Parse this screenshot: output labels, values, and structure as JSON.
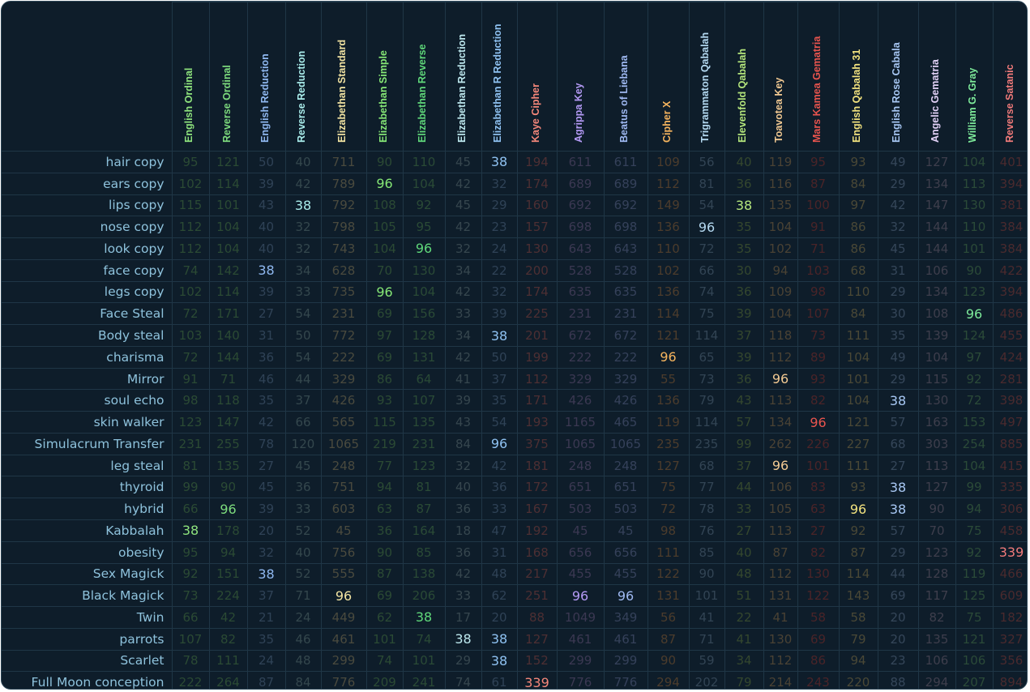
{
  "ciphers": [
    {
      "name": "English Ordinal",
      "color": "#8ee37d",
      "dim": "#2b4a34"
    },
    {
      "name": "Reverse Ordinal",
      "color": "#7ddb7d",
      "dim": "#2b4a34"
    },
    {
      "name": "English Reduction",
      "color": "#8fb8f0",
      "dim": "#2f4256"
    },
    {
      "name": "Reverse Reduction",
      "color": "#a8ecea",
      "dim": "#34474d"
    },
    {
      "name": "Elizabethan Standard",
      "color": "#f2e4a2",
      "dim": "#4a4a3e"
    },
    {
      "name": "Elizabethan Simple",
      "color": "#86e876",
      "dim": "#2b4a34"
    },
    {
      "name": "Elizabethan Reverse",
      "color": "#5fd87a",
      "dim": "#2a4a36"
    },
    {
      "name": "Elizabethan Reduction",
      "color": "#bde8ee",
      "dim": "#36464e"
    },
    {
      "name": "Elizabethan R Reduction",
      "color": "#8fc2f2",
      "dim": "#2f4256"
    },
    {
      "name": "Kaye Cipher",
      "color": "#f5877a",
      "dim": "#4d2f33"
    },
    {
      "name": "Agrippa Key",
      "color": "#b49af5",
      "dim": "#3b3852"
    },
    {
      "name": "Beatus of Liebana",
      "color": "#9fb9f2",
      "dim": "#35415a"
    },
    {
      "name": "Cipher X",
      "color": "#f5b45e",
      "dim": "#4c3c2c"
    },
    {
      "name": "Trigrammaton Qabalah",
      "color": "#b3d8f0",
      "dim": "#324454"
    },
    {
      "name": "Elevenfold Qabalah",
      "color": "#b4e67c",
      "dim": "#34472e"
    },
    {
      "name": "Toavotea Key",
      "color": "#f2c992",
      "dim": "#4a4234"
    },
    {
      "name": "Mars Kamea Gematria",
      "color": "#e8544e",
      "dim": "#4a2428"
    },
    {
      "name": "English Qabalah 31",
      "color": "#f2e27e",
      "dim": "#4a4836"
    },
    {
      "name": "English Rose Cabala",
      "color": "#a8c8f4",
      "dim": "#354659"
    },
    {
      "name": "Angelic Gematria",
      "color": "#e0d0f5",
      "dim": "#3e3e4c"
    },
    {
      "name": "William G. Gray",
      "color": "#7dea9a",
      "dim": "#2b4a38"
    },
    {
      "name": "Reverse Satanic",
      "color": "#f07a7a",
      "dim": "#4a2a2e"
    }
  ],
  "rows": [
    {
      "phrase": "hair copy",
      "values": [
        "95",
        "121",
        "50",
        "40",
        "711",
        "90",
        "110",
        "45",
        "38",
        "194",
        "611",
        "611",
        "109",
        "56",
        "40",
        "119",
        "95",
        "93",
        "49",
        "127",
        "104",
        "401"
      ],
      "hl": [
        8
      ]
    },
    {
      "phrase": "ears copy",
      "values": [
        "102",
        "114",
        "39",
        "42",
        "789",
        "96",
        "104",
        "42",
        "32",
        "174",
        "689",
        "689",
        "112",
        "81",
        "36",
        "116",
        "87",
        "84",
        "29",
        "134",
        "113",
        "394"
      ],
      "hl": [
        5
      ]
    },
    {
      "phrase": "lips copy",
      "values": [
        "115",
        "101",
        "43",
        "38",
        "792",
        "108",
        "92",
        "45",
        "29",
        "160",
        "692",
        "692",
        "149",
        "54",
        "38",
        "135",
        "100",
        "97",
        "42",
        "147",
        "130",
        "381"
      ],
      "hl": [
        3,
        14
      ]
    },
    {
      "phrase": "nose copy",
      "values": [
        "112",
        "104",
        "40",
        "32",
        "798",
        "105",
        "95",
        "42",
        "23",
        "157",
        "698",
        "698",
        "136",
        "96",
        "35",
        "104",
        "91",
        "86",
        "32",
        "144",
        "110",
        "384"
      ],
      "hl": [
        13
      ]
    },
    {
      "phrase": "look copy",
      "values": [
        "112",
        "104",
        "40",
        "32",
        "743",
        "104",
        "96",
        "32",
        "24",
        "130",
        "643",
        "643",
        "110",
        "72",
        "35",
        "102",
        "71",
        "86",
        "45",
        "144",
        "101",
        "384"
      ],
      "hl": [
        6
      ]
    },
    {
      "phrase": "face copy",
      "values": [
        "74",
        "142",
        "38",
        "34",
        "628",
        "70",
        "130",
        "34",
        "22",
        "200",
        "528",
        "528",
        "102",
        "66",
        "30",
        "94",
        "103",
        "68",
        "31",
        "106",
        "90",
        "422"
      ],
      "hl": [
        2
      ]
    },
    {
      "phrase": "legs copy",
      "values": [
        "102",
        "114",
        "39",
        "33",
        "735",
        "96",
        "104",
        "42",
        "32",
        "174",
        "635",
        "635",
        "136",
        "74",
        "36",
        "109",
        "98",
        "110",
        "29",
        "134",
        "123",
        "394"
      ],
      "hl": [
        5
      ]
    },
    {
      "phrase": "Face Steal",
      "values": [
        "72",
        "171",
        "27",
        "54",
        "231",
        "69",
        "156",
        "33",
        "39",
        "225",
        "231",
        "231",
        "114",
        "75",
        "39",
        "104",
        "107",
        "84",
        "30",
        "108",
        "96",
        "486"
      ],
      "hl": [
        20
      ]
    },
    {
      "phrase": "Body steal",
      "values": [
        "103",
        "140",
        "31",
        "50",
        "772",
        "97",
        "128",
        "34",
        "38",
        "201",
        "672",
        "672",
        "121",
        "114",
        "37",
        "118",
        "73",
        "111",
        "35",
        "139",
        "124",
        "455"
      ],
      "hl": [
        8
      ]
    },
    {
      "phrase": "charisma",
      "values": [
        "72",
        "144",
        "36",
        "54",
        "222",
        "69",
        "131",
        "42",
        "50",
        "199",
        "222",
        "222",
        "96",
        "65",
        "39",
        "112",
        "89",
        "104",
        "49",
        "104",
        "97",
        "424"
      ],
      "hl": [
        12
      ]
    },
    {
      "phrase": "Mirror",
      "values": [
        "91",
        "71",
        "46",
        "44",
        "329",
        "86",
        "64",
        "41",
        "37",
        "112",
        "329",
        "329",
        "55",
        "73",
        "36",
        "96",
        "93",
        "101",
        "29",
        "115",
        "92",
        "281"
      ],
      "hl": [
        15
      ]
    },
    {
      "phrase": "soul echo",
      "values": [
        "98",
        "118",
        "35",
        "37",
        "426",
        "93",
        "107",
        "39",
        "35",
        "171",
        "426",
        "426",
        "136",
        "79",
        "43",
        "113",
        "82",
        "104",
        "38",
        "130",
        "72",
        "398"
      ],
      "hl": [
        18
      ]
    },
    {
      "phrase": "skin walker",
      "values": [
        "123",
        "147",
        "42",
        "66",
        "565",
        "115",
        "135",
        "43",
        "54",
        "193",
        "1165",
        "465",
        "119",
        "114",
        "57",
        "134",
        "96",
        "121",
        "57",
        "163",
        "153",
        "497"
      ],
      "hl": [
        16
      ]
    },
    {
      "phrase": "Simulacrum Transfer",
      "values": [
        "231",
        "255",
        "78",
        "120",
        "1065",
        "219",
        "231",
        "84",
        "96",
        "375",
        "1065",
        "1065",
        "235",
        "235",
        "99",
        "262",
        "226",
        "227",
        "68",
        "303",
        "254",
        "885"
      ],
      "hl": [
        8
      ]
    },
    {
      "phrase": "leg steal",
      "values": [
        "81",
        "135",
        "27",
        "45",
        "248",
        "77",
        "123",
        "32",
        "42",
        "181",
        "248",
        "248",
        "127",
        "68",
        "37",
        "96",
        "101",
        "111",
        "27",
        "113",
        "104",
        "415"
      ],
      "hl": [
        15
      ]
    },
    {
      "phrase": "thyroid",
      "values": [
        "99",
        "90",
        "45",
        "36",
        "751",
        "94",
        "81",
        "40",
        "36",
        "172",
        "651",
        "651",
        "75",
        "77",
        "44",
        "106",
        "83",
        "93",
        "38",
        "127",
        "99",
        "335"
      ],
      "hl": [
        18
      ]
    },
    {
      "phrase": "hybrid",
      "values": [
        "66",
        "96",
        "39",
        "33",
        "603",
        "63",
        "87",
        "36",
        "33",
        "167",
        "503",
        "503",
        "72",
        "78",
        "33",
        "105",
        "63",
        "96",
        "38",
        "90",
        "94",
        "306"
      ],
      "hl": [
        1,
        17,
        18
      ]
    },
    {
      "phrase": "Kabbalah",
      "values": [
        "38",
        "178",
        "20",
        "52",
        "45",
        "36",
        "164",
        "18",
        "47",
        "192",
        "45",
        "45",
        "98",
        "76",
        "27",
        "113",
        "27",
        "92",
        "57",
        "70",
        "75",
        "458"
      ],
      "hl": [
        0
      ]
    },
    {
      "phrase": "obesity",
      "values": [
        "95",
        "94",
        "32",
        "40",
        "756",
        "90",
        "85",
        "36",
        "31",
        "168",
        "656",
        "656",
        "111",
        "85",
        "40",
        "87",
        "82",
        "87",
        "29",
        "123",
        "92",
        "339"
      ],
      "hl": [
        21
      ]
    },
    {
      "phrase": "Sex Magick",
      "values": [
        "92",
        "151",
        "38",
        "52",
        "555",
        "87",
        "138",
        "42",
        "48",
        "217",
        "455",
        "455",
        "122",
        "90",
        "48",
        "112",
        "130",
        "114",
        "44",
        "128",
        "119",
        "466"
      ],
      "hl": [
        2
      ]
    },
    {
      "phrase": "Black Magick",
      "values": [
        "73",
        "224",
        "37",
        "71",
        "96",
        "69",
        "206",
        "33",
        "62",
        "251",
        "96",
        "96",
        "131",
        "101",
        "51",
        "131",
        "122",
        "143",
        "69",
        "117",
        "125",
        "609"
      ],
      "hl": [
        4,
        10,
        11
      ]
    },
    {
      "phrase": "Twin",
      "values": [
        "66",
        "42",
        "21",
        "24",
        "449",
        "62",
        "38",
        "17",
        "20",
        "88",
        "1049",
        "349",
        "56",
        "41",
        "22",
        "41",
        "58",
        "58",
        "20",
        "82",
        "75",
        "182"
      ],
      "hl": [
        6
      ]
    },
    {
      "phrase": "parrots",
      "values": [
        "107",
        "82",
        "35",
        "46",
        "461",
        "101",
        "74",
        "38",
        "38",
        "127",
        "461",
        "461",
        "87",
        "71",
        "41",
        "130",
        "69",
        "79",
        "20",
        "135",
        "121",
        "327"
      ],
      "hl": [
        7,
        8
      ]
    },
    {
      "phrase": "Scarlet",
      "values": [
        "78",
        "111",
        "24",
        "48",
        "299",
        "74",
        "101",
        "29",
        "38",
        "152",
        "299",
        "299",
        "90",
        "59",
        "34",
        "112",
        "86",
        "94",
        "23",
        "106",
        "106",
        "356"
      ],
      "hl": [
        8
      ]
    },
    {
      "phrase": "Full Moon conception",
      "values": [
        "222",
        "264",
        "87",
        "84",
        "776",
        "209",
        "241",
        "74",
        "61",
        "339",
        "776",
        "776",
        "294",
        "202",
        "79",
        "214",
        "243",
        "220",
        "88",
        "294",
        "207",
        "894"
      ],
      "hl": [
        9
      ]
    }
  ]
}
